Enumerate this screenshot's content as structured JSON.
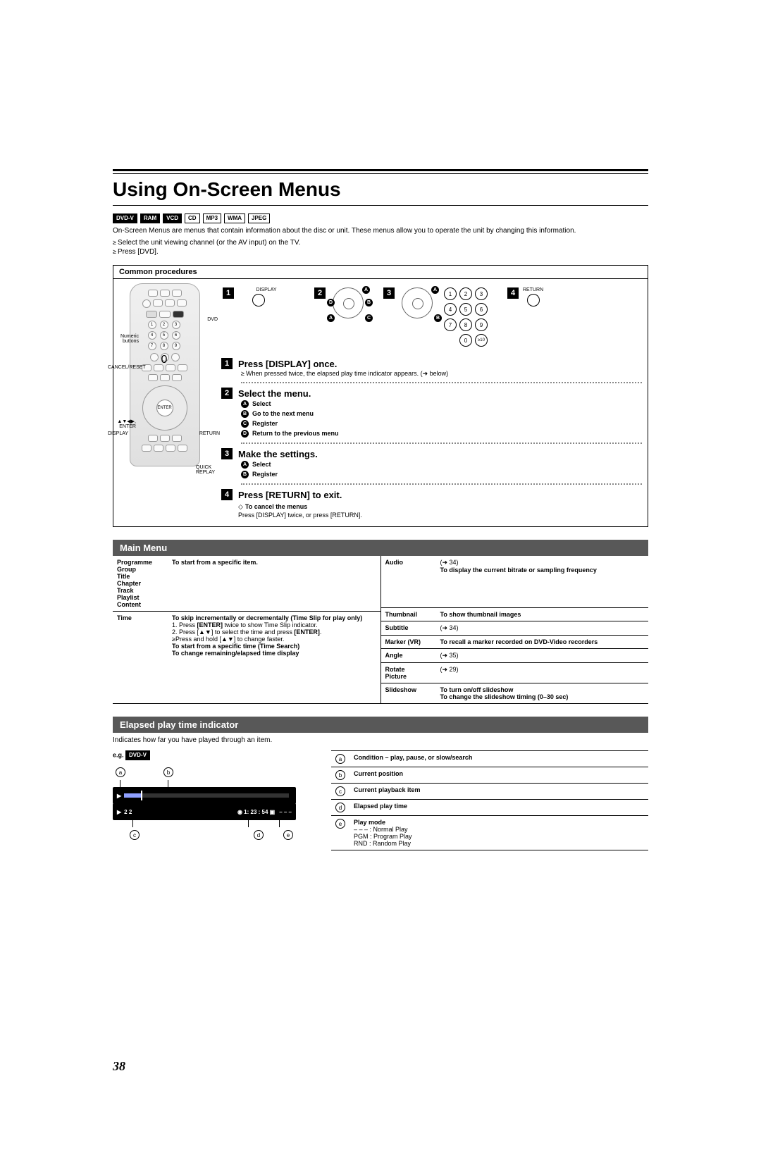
{
  "page_number": "38",
  "title": "Using On-Screen Menus",
  "badges": [
    "DVD-V",
    "RAM",
    "VCD",
    "CD",
    "MP3",
    "WMA",
    "JPEG"
  ],
  "badge_styles": [
    "inv",
    "inv",
    "inv",
    "",
    "",
    "",
    ""
  ],
  "intro_text": "On-Screen Menus are menus that contain information about the disc or unit. These menus allow you to operate the unit by changing this information.",
  "intro_bullets": [
    "Select the unit viewing channel (or the AV input) on the TV.",
    "Press [DVD]."
  ],
  "box_title": "Common procedures",
  "remote_labels": {
    "numeric": "Numeric buttons",
    "cancel": "CANCEL/RESET",
    "enter": "▲▼◀▶, ENTER",
    "display": "DISPLAY",
    "dvd": "DVD",
    "return": "RETURN",
    "quick": "QUICK REPLAY"
  },
  "icon_labels": {
    "display": "DISPLAY",
    "return": "RETURN"
  },
  "steps": [
    {
      "num": "1",
      "title": "Press [DISPLAY] once.",
      "note": "When pressed twice, the elapsed play time indicator appears. (➜ below)"
    },
    {
      "num": "2",
      "title": "Select the menu.",
      "subs": [
        {
          "l": "A",
          "t": "Select"
        },
        {
          "l": "B",
          "t": "Go to the next menu"
        },
        {
          "l": "C",
          "t": "Register"
        },
        {
          "l": "D",
          "t": "Return to the previous menu"
        }
      ]
    },
    {
      "num": "3",
      "title": "Make the settings.",
      "subs": [
        {
          "l": "A",
          "t": "Select"
        },
        {
          "l": "B",
          "t": "Register"
        }
      ]
    },
    {
      "num": "4",
      "title": "Press [RETURN] to exit."
    }
  ],
  "cancel": {
    "title": "To cancel the menus",
    "text": "Press [DISPLAY] twice, or press [RETURN]."
  },
  "main_menu_title": "Main Menu",
  "main_menu_left": [
    {
      "k": "Programme\nGroup\nTitle\nChapter\nTrack\nPlaylist\nContent",
      "v": "<b>To start from a specific item.</b>"
    },
    {
      "k": "Time",
      "v": "<b>To skip incrementally or decrementally (Time Slip for play only)</b><br>1. Press <b>[ENTER]</b> twice to show Time Slip indicator.<br>2. Press [▲▼] to select the time and press <b>[ENTER]</b>.<br>≥Press and hold [▲▼] to change faster.<br><b>To start from a specific time (Time Search)</b><br><b>To change remaining/elapsed time display</b>"
    }
  ],
  "main_menu_right": [
    {
      "k": "Audio",
      "v": "(➜ 34)<br><b>To display the current bitrate or sampling frequency</b>"
    },
    {
      "k": "Thumbnail",
      "v": "<b>To show thumbnail images</b>"
    },
    {
      "k": "Subtitle",
      "v": "(➜ 34)"
    },
    {
      "k": "Marker (VR)",
      "v": "<b>To recall a marker recorded on DVD-Video recorders</b>"
    },
    {
      "k": "Angle",
      "v": "(➜ 35)"
    },
    {
      "k": "Rotate\nPicture",
      "v": "(➜ 29)"
    },
    {
      "k": "Slideshow",
      "v": "<b>To turn on/off slideshow</b><br><b>To change the slideshow timing (0–30 sec)</b>"
    }
  ],
  "elapsed_title": "Elapsed play time indicator",
  "elapsed_intro": "Indicates how far you have played through an item.",
  "eg_label": "e.g.",
  "eg_badge": "DVD-V",
  "indicator": {
    "left_nums": "2       2",
    "time": "1: 23 : 54",
    "right": "– – –"
  },
  "ind_markers_top": [
    "a",
    "b"
  ],
  "ind_markers_bot": [
    "c",
    "d",
    "e"
  ],
  "legend": [
    {
      "l": "a",
      "t": "<b>Condition – play, pause, or slow/search</b>"
    },
    {
      "l": "b",
      "t": "<b>Current position</b>"
    },
    {
      "l": "c",
      "t": "<b>Current playback item</b>"
    },
    {
      "l": "d",
      "t": "<b>Elapsed play time</b>"
    },
    {
      "l": "e",
      "t": "<b>Play mode</b><br>– – – : Normal Play<br>PGM : Program Play<br>RND : Random Play"
    }
  ],
  "colors": {
    "section_bar_bg": "#585858",
    "accent": "#000000"
  }
}
